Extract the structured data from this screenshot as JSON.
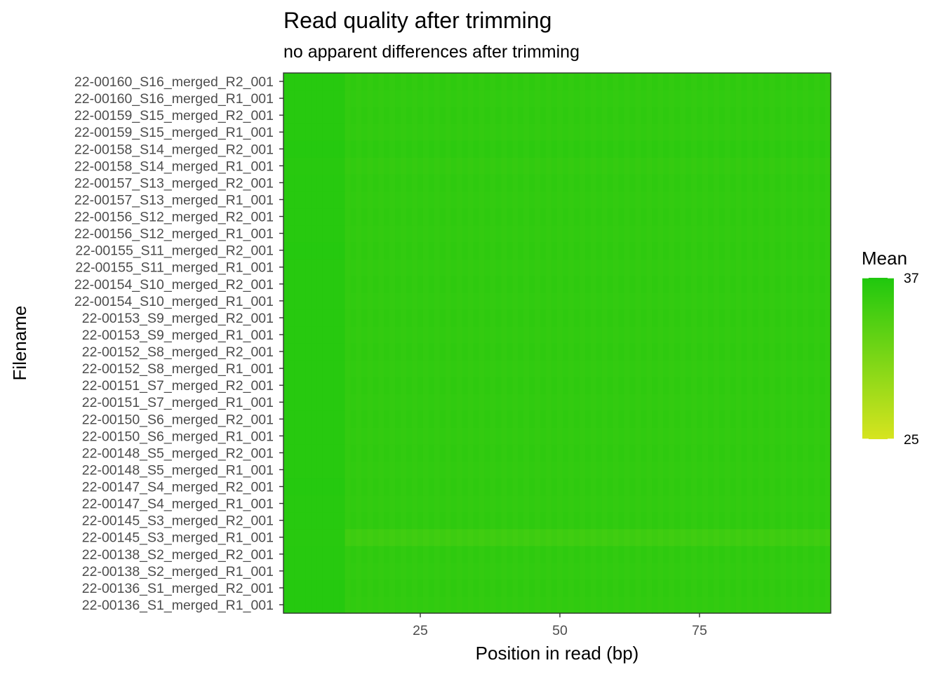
{
  "chart_data": {
    "type": "heatmap",
    "title": "Read quality after trimming",
    "subtitle": "no apparent differences after trimming",
    "xlabel": "Position in read (bp)",
    "ylabel": "Filename",
    "xlim": [
      0.5,
      98.5
    ],
    "x_ticks": [
      25,
      50,
      75
    ],
    "positions": {
      "start": 1,
      "end": 98
    },
    "rows": [
      "22-00136_S1_merged_R1_001",
      "22-00136_S1_merged_R2_001",
      "22-00138_S2_merged_R1_001",
      "22-00138_S2_merged_R2_001",
      "22-00145_S3_merged_R1_001",
      "22-00145_S3_merged_R2_001",
      "22-00147_S4_merged_R1_001",
      "22-00147_S4_merged_R2_001",
      "22-00148_S5_merged_R1_001",
      "22-00148_S5_merged_R2_001",
      "22-00150_S6_merged_R1_001",
      "22-00150_S6_merged_R2_001",
      "22-00151_S7_merged_R1_001",
      "22-00151_S7_merged_R2_001",
      "22-00152_S8_merged_R1_001",
      "22-00152_S8_merged_R2_001",
      "22-00153_S9_merged_R1_001",
      "22-00153_S9_merged_R2_001",
      "22-00154_S10_merged_R1_001",
      "22-00154_S10_merged_R2_001",
      "22-00155_S11_merged_R1_001",
      "22-00155_S11_merged_R2_001",
      "22-00156_S12_merged_R1_001",
      "22-00156_S12_merged_R2_001",
      "22-00157_S13_merged_R1_001",
      "22-00157_S13_merged_R2_001",
      "22-00158_S14_merged_R1_001",
      "22-00158_S14_merged_R2_001",
      "22-00159_S15_merged_R1_001",
      "22-00159_S15_merged_R2_001",
      "22-00160_S16_merged_R1_001",
      "22-00160_S16_merged_R2_001"
    ],
    "head_quality": [
      36.6,
      36.6,
      36.5,
      36.5,
      36.4,
      36.5,
      36.5,
      36.6,
      36.5,
      36.5,
      36.5,
      36.5,
      36.5,
      36.5,
      36.5,
      36.5,
      36.5,
      36.5,
      36.5,
      36.5,
      36.5,
      36.6,
      36.5,
      36.5,
      36.5,
      36.5,
      36.4,
      36.6,
      36.5,
      36.5,
      36.5,
      36.5
    ],
    "body_quality": [
      35.8,
      35.9,
      35.8,
      35.9,
      35.0,
      35.9,
      35.8,
      35.9,
      35.8,
      35.9,
      35.8,
      35.9,
      35.8,
      35.9,
      35.8,
      35.9,
      35.8,
      35.9,
      35.8,
      35.9,
      35.8,
      35.9,
      35.8,
      35.9,
      35.8,
      35.9,
      35.7,
      36.0,
      35.8,
      35.9,
      35.8,
      35.9
    ],
    "head_length": 11,
    "legend": {
      "title": "Mean",
      "min": 25,
      "max": 37,
      "low_color": "#d7e41f",
      "high_color": "#1fc80e",
      "position": "right"
    },
    "grid": false
  }
}
